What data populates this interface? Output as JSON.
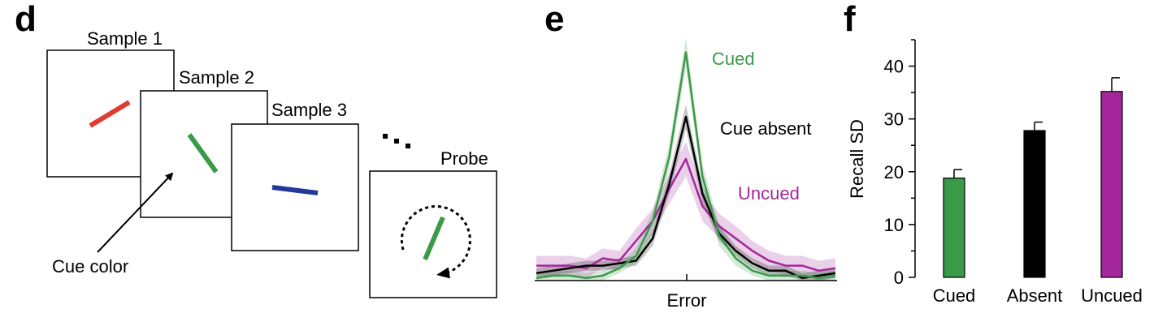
{
  "panels": {
    "d": {
      "letter": "d",
      "sample1_label": "Sample 1",
      "sample2_label": "Sample 2",
      "sample3_label": "Sample 3",
      "probe_label": "Probe",
      "cue_label": "Cue color",
      "colors": {
        "sample1_bar": "#e03c31",
        "sample2_bar": "#3a9a48",
        "sample3_bar": "#22399a",
        "probe_bar": "#3a9a48"
      }
    },
    "e": {
      "letter": "e",
      "xlabel": "Error"
    },
    "f": {
      "letter": "f"
    }
  },
  "chart_data": [
    {
      "type": "line",
      "panel": "e",
      "title": "",
      "xlabel": "Error",
      "ylabel": "",
      "x": [
        -9,
        -8,
        -7,
        -6,
        -5,
        -4,
        -3,
        -2,
        -1,
        0,
        1,
        2,
        3,
        4,
        5,
        6,
        7,
        8,
        9
      ],
      "ylim": [
        0,
        1
      ],
      "series": [
        {
          "name": "Cued",
          "color": "#3a9a48",
          "values": [
            0.01,
            0.02,
            0.02,
            0.01,
            0.02,
            0.05,
            0.1,
            0.24,
            0.5,
            0.92,
            0.42,
            0.18,
            0.09,
            0.04,
            0.02,
            0.02,
            0.02,
            0.01,
            0.02
          ],
          "band": [
            0.02,
            0.02,
            0.02,
            0.02,
            0.02,
            0.02,
            0.03,
            0.04,
            0.05,
            0.06,
            0.05,
            0.04,
            0.03,
            0.02,
            0.02,
            0.02,
            0.02,
            0.02,
            0.02
          ]
        },
        {
          "name": "Cue absent",
          "color": "#000000",
          "values": [
            0.03,
            0.04,
            0.05,
            0.06,
            0.06,
            0.07,
            0.08,
            0.17,
            0.39,
            0.66,
            0.35,
            0.19,
            0.12,
            0.07,
            0.04,
            0.04,
            0.01,
            0.02,
            0.03
          ],
          "band": [
            0.02,
            0.02,
            0.02,
            0.02,
            0.02,
            0.02,
            0.02,
            0.03,
            0.04,
            0.05,
            0.04,
            0.03,
            0.02,
            0.02,
            0.02,
            0.02,
            0.02,
            0.02,
            0.02
          ]
        },
        {
          "name": "Uncued",
          "color": "#a3279a",
          "values": [
            0.06,
            0.06,
            0.06,
            0.05,
            0.09,
            0.08,
            0.16,
            0.24,
            0.37,
            0.49,
            0.3,
            0.22,
            0.17,
            0.12,
            0.08,
            0.06,
            0.06,
            0.04,
            0.05
          ],
          "band": [
            0.04,
            0.04,
            0.04,
            0.04,
            0.04,
            0.04,
            0.05,
            0.05,
            0.06,
            0.07,
            0.06,
            0.05,
            0.05,
            0.04,
            0.04,
            0.04,
            0.04,
            0.04,
            0.04
          ]
        }
      ]
    },
    {
      "type": "bar",
      "panel": "f",
      "title": "",
      "xlabel": "",
      "ylabel": "Recall SD",
      "ylim": [
        0,
        45
      ],
      "yticks": [
        0,
        10,
        20,
        30,
        40
      ],
      "categories": [
        "Cued",
        "Absent",
        "Uncued"
      ],
      "values": [
        18.8,
        27.8,
        35.2
      ],
      "errors": [
        1.6,
        1.6,
        2.6
      ],
      "colors": [
        "#3a9a48",
        "#000000",
        "#a3279a"
      ]
    }
  ]
}
